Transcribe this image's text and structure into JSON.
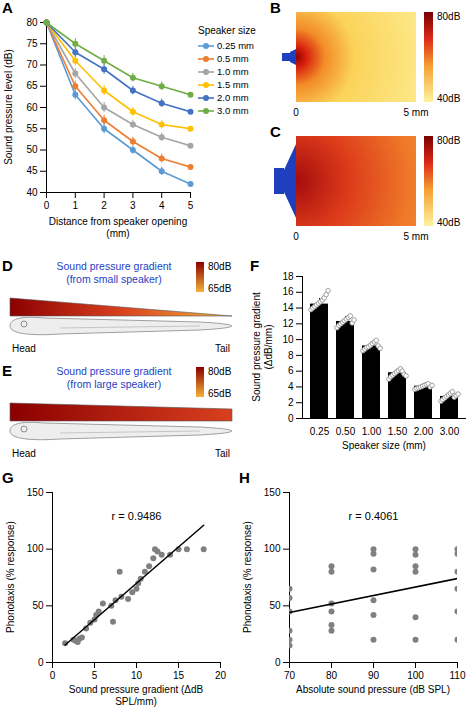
{
  "chart_data": [
    {
      "panel": "A",
      "type": "line",
      "x_label": "Distance from speaker opening (mm)",
      "y_label": "Sound pressure level (dB)",
      "legend_title": "Speaker size",
      "legend": "right",
      "marker": "circle",
      "grid": false,
      "x": [
        0,
        1,
        2,
        3,
        4,
        5
      ],
      "series": [
        {
          "name": "0.25 mm",
          "color": "#5b9bd5",
          "values": [
            80,
            63,
            55,
            50,
            45,
            42
          ],
          "errors": [
            0,
            1.2,
            1.2,
            1.0,
            1.0,
            1.0
          ]
        },
        {
          "name": "0.5 mm",
          "color": "#ed7d31",
          "values": [
            80,
            65,
            57,
            52,
            48,
            46
          ],
          "errors": [
            0,
            1.2,
            1.2,
            1.0,
            1.0,
            1.0
          ]
        },
        {
          "name": "1.0 mm",
          "color": "#a5a5a5",
          "values": [
            80,
            68,
            60,
            56,
            53,
            51
          ],
          "errors": [
            0,
            1.2,
            1.2,
            1.0,
            1.0,
            1.0
          ]
        },
        {
          "name": "1.5 mm",
          "color": "#ffc000",
          "values": [
            80,
            71,
            64,
            59,
            56,
            55
          ],
          "errors": [
            0,
            1.2,
            1.2,
            1.0,
            1.0,
            1.0
          ]
        },
        {
          "name": "2.0 mm",
          "color": "#4472c4",
          "values": [
            80,
            73,
            69,
            64,
            61,
            59
          ],
          "errors": [
            0,
            1.2,
            1.2,
            1.0,
            1.0,
            1.0
          ]
        },
        {
          "name": "3.0 mm",
          "color": "#70ad47",
          "values": [
            80,
            75,
            71,
            67,
            65,
            63
          ],
          "errors": [
            0,
            1.2,
            1.2,
            1.0,
            1.0,
            1.0
          ]
        }
      ],
      "xlim": [
        0,
        5
      ],
      "xticks": [
        0,
        1,
        2,
        3,
        4,
        5
      ],
      "ylim": [
        40,
        80
      ],
      "yticks": [
        40,
        45,
        50,
        55,
        60,
        65,
        70,
        75,
        80
      ]
    },
    {
      "panel": "F",
      "type": "bar",
      "x_label": "Speaker size (mm)",
      "y_label": "Sound pressure gradient (ΔdB/mm)",
      "categories": [
        "0.25",
        "0.50",
        "1.00",
        "1.50",
        "2.00",
        "3.00"
      ],
      "values": [
        14.5,
        12.3,
        9.2,
        5.8,
        4.1,
        2.8
      ],
      "errors": [
        0.7,
        0.6,
        0.5,
        0.5,
        0.3,
        0.4
      ],
      "points": [
        [
          13.8,
          14.0,
          14.2,
          14.4,
          14.6,
          14.8,
          15.0,
          15.3,
          15.7,
          16.2
        ],
        [
          11.5,
          11.8,
          12.0,
          12.2,
          12.4,
          12.6,
          12.8,
          13.0,
          12.1,
          12.5
        ],
        [
          8.6,
          8.8,
          9.0,
          9.1,
          9.3,
          9.5,
          9.7,
          9.9,
          9.2,
          8.9
        ],
        [
          5.0,
          5.3,
          5.5,
          5.7,
          5.9,
          6.1,
          6.3,
          6.0,
          5.6,
          5.4
        ],
        [
          3.7,
          3.8,
          3.9,
          4.0,
          4.1,
          4.2,
          4.3,
          4.4,
          4.0,
          4.2
        ],
        [
          2.2,
          2.4,
          2.6,
          2.8,
          3.0,
          3.2,
          3.4,
          2.7,
          2.9,
          3.1
        ]
      ],
      "color": "#000000",
      "grid": false,
      "ylim": [
        0,
        18
      ],
      "yticks": [
        0,
        2,
        4,
        6,
        8,
        10,
        12,
        14,
        16,
        18
      ]
    },
    {
      "panel": "G",
      "type": "scatter",
      "x_label": "Sound pressure gradient (ΔdB SPL/mm)",
      "y_label": "Phonotaxis (% response)",
      "annotation": "r = 0.9486",
      "x": [
        1.5,
        2.5,
        2.8,
        3.0,
        3.2,
        3.5,
        4.0,
        4.5,
        5.0,
        5.2,
        5.5,
        6.0,
        7.0,
        7.2,
        7.5,
        8.0,
        8.2,
        9.0,
        9.5,
        10.0,
        10.2,
        10.5,
        11.0,
        11.5,
        12.0,
        12.2,
        12.5,
        13.0,
        14.0,
        15.0,
        16.0,
        18.0
      ],
      "values": [
        17,
        20,
        19,
        18,
        21,
        22,
        30,
        35,
        38,
        42,
        45,
        52,
        50,
        36,
        55,
        80,
        58,
        56,
        62,
        65,
        70,
        74,
        80,
        85,
        92,
        100,
        98,
        95,
        95,
        100,
        100,
        100
      ],
      "color": "#808080",
      "grid": false,
      "xlim": [
        0,
        20
      ],
      "xticks": [
        0,
        5,
        10,
        15,
        20
      ],
      "ylim": [
        0,
        150
      ],
      "yticks": [
        0,
        50,
        100,
        150
      ]
    },
    {
      "panel": "H",
      "type": "scatter",
      "x_label": "Absolute sound pressure (dB SPL)",
      "y_label": "Phonotaxis (% response)",
      "annotation": "r = 0.4061",
      "x": [
        70,
        70,
        70,
        70,
        70,
        70,
        80,
        80,
        80,
        80,
        80,
        80,
        90,
        90,
        90,
        90,
        90,
        90,
        100,
        100,
        100,
        100,
        100,
        100,
        110,
        110,
        110,
        110,
        110,
        110
      ],
      "values": [
        65,
        57,
        45,
        28,
        20,
        15,
        85,
        80,
        52,
        45,
        33,
        28,
        100,
        96,
        82,
        55,
        42,
        20,
        100,
        95,
        85,
        80,
        40,
        20,
        100,
        96,
        80,
        65,
        45,
        20
      ],
      "color": "#808080",
      "grid": false,
      "xlim": [
        70,
        110
      ],
      "xticks": [
        70,
        80,
        90,
        100,
        110
      ],
      "ylim": [
        0,
        150
      ],
      "yticks": [
        0,
        50,
        100,
        150
      ]
    }
  ],
  "diagrams": {
    "B": {
      "panel": "B",
      "colorbar_max": "80dB",
      "colorbar_min": "40dB",
      "x_start": "0",
      "x_end": "5 mm"
    },
    "C": {
      "panel": "C",
      "colorbar_max": "80dB",
      "colorbar_min": "40dB",
      "x_start": "0",
      "x_end": "5 mm"
    },
    "D": {
      "panel": "D",
      "title": "Sound pressure gradient (from small speaker)",
      "colorbar_max": "80dB",
      "colorbar_min": "65dB",
      "head": "Head",
      "tail": "Tail"
    },
    "E": {
      "panel": "E",
      "title": "Sound pressure gradient (from large speaker)",
      "colorbar_max": "80dB",
      "colorbar_min": "65dB",
      "head": "Head",
      "tail": "Tail"
    }
  }
}
